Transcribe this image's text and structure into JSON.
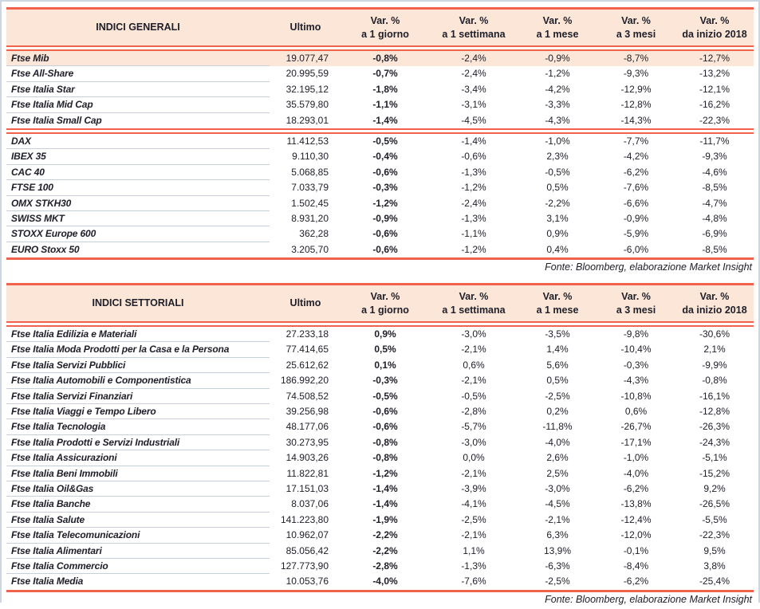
{
  "colors": {
    "accent": "#f0624c",
    "header_bg": "#fbe6d7",
    "row_highlight": "#fbe6d7",
    "separator": "#c9cfda",
    "text": "#20202b",
    "frame": "#ccd7e3"
  },
  "tables": [
    {
      "title": "INDICI GENERALI",
      "columns": [
        {
          "label": "Ultimo",
          "sub": ""
        },
        {
          "label": "Var. %",
          "sub": "a 1 giorno"
        },
        {
          "label": "Var. %",
          "sub": "a 1 settimana"
        },
        {
          "label": "Var. %",
          "sub": "a 1 mese"
        },
        {
          "label": "Var. %",
          "sub": "a 3 mesi"
        },
        {
          "label": "Var. %",
          "sub": "da inizio 2018"
        }
      ],
      "groups": [
        {
          "rows": [
            {
              "name": "Ftse Mib",
              "ultimo": "19.077,47",
              "v": [
                "-0,8%",
                "-2,4%",
                "-0,9%",
                "-8,7%",
                "-12,7%"
              ],
              "highlight": true
            },
            {
              "name": "Ftse All-Share",
              "ultimo": "20.995,59",
              "v": [
                "-0,7%",
                "-2,4%",
                "-1,2%",
                "-9,3%",
                "-13,2%"
              ]
            },
            {
              "name": "Ftse Italia Star",
              "ultimo": "32.195,12",
              "v": [
                "-1,8%",
                "-3,4%",
                "-4,2%",
                "-12,9%",
                "-12,1%"
              ]
            },
            {
              "name": "Ftse Italia Mid Cap",
              "ultimo": "35.579,80",
              "v": [
                "-1,1%",
                "-3,1%",
                "-3,3%",
                "-12,8%",
                "-16,2%"
              ]
            },
            {
              "name": "Ftse Italia Small Cap",
              "ultimo": "18.293,01",
              "v": [
                "-1,4%",
                "-4,5%",
                "-4,3%",
                "-14,3%",
                "-22,3%"
              ]
            }
          ]
        },
        {
          "rows": [
            {
              "name": "DAX",
              "ultimo": "11.412,53",
              "v": [
                "-0,5%",
                "-1,4%",
                "-1,0%",
                "-7,7%",
                "-11,7%"
              ]
            },
            {
              "name": "IBEX 35",
              "ultimo": "9.110,30",
              "v": [
                "-0,4%",
                "-0,6%",
                "2,3%",
                "-4,2%",
                "-9,3%"
              ]
            },
            {
              "name": "CAC 40",
              "ultimo": "5.068,85",
              "v": [
                "-0,6%",
                "-1,3%",
                "-0,5%",
                "-6,2%",
                "-4,6%"
              ]
            },
            {
              "name": "FTSE 100",
              "ultimo": "7.033,79",
              "v": [
                "-0,3%",
                "-1,2%",
                "0,5%",
                "-7,6%",
                "-8,5%"
              ]
            },
            {
              "name": "OMX STKH30",
              "ultimo": "1.502,45",
              "v": [
                "-1,2%",
                "-2,4%",
                "-2,2%",
                "-6,6%",
                "-4,7%"
              ]
            },
            {
              "name": "SWISS MKT",
              "ultimo": "8.931,20",
              "v": [
                "-0,9%",
                "-1,3%",
                "3,1%",
                "-0,9%",
                "-4,8%"
              ]
            },
            {
              "name": "STOXX Europe 600",
              "ultimo": "362,28",
              "v": [
                "-0,6%",
                "-1,1%",
                "0,9%",
                "-5,9%",
                "-6,9%"
              ]
            },
            {
              "name": "EURO Stoxx 50",
              "ultimo": "3.205,70",
              "v": [
                "-0,6%",
                "-1,2%",
                "0,4%",
                "-6,0%",
                "-8,5%"
              ]
            }
          ]
        }
      ],
      "source": "Fonte: Bloomberg, elaborazione Market Insight"
    },
    {
      "title": "INDICI SETTORIALI",
      "columns": [
        {
          "label": "Ultimo",
          "sub": ""
        },
        {
          "label": "Var. %",
          "sub": "a 1 giorno"
        },
        {
          "label": "Var. %",
          "sub": "a 1 settimana"
        },
        {
          "label": "Var. %",
          "sub": "a 1 mese"
        },
        {
          "label": "Var. %",
          "sub": "a 3 mesi"
        },
        {
          "label": "Var. %",
          "sub": "da inizio 2018"
        }
      ],
      "groups": [
        {
          "rows": [
            {
              "name": "Ftse Italia Edilizia e Materiali",
              "ultimo": "27.233,18",
              "v": [
                "0,9%",
                "-3,0%",
                "-3,5%",
                "-9,8%",
                "-30,6%"
              ]
            },
            {
              "name": "Ftse Italia Moda Prodotti per la Casa e la Persona",
              "ultimo": "77.414,65",
              "v": [
                "0,5%",
                "-2,1%",
                "1,4%",
                "-10,4%",
                "2,1%"
              ]
            },
            {
              "name": "Ftse Italia Servizi Pubblici",
              "ultimo": "25.612,62",
              "v": [
                "0,1%",
                "0,6%",
                "5,6%",
                "-0,3%",
                "-9,9%"
              ]
            },
            {
              "name": "Ftse Italia Automobili e Componentistica",
              "ultimo": "186.992,20",
              "v": [
                "-0,3%",
                "-2,1%",
                "0,5%",
                "-4,3%",
                "-0,8%"
              ]
            },
            {
              "name": "Ftse Italia Servizi Finanziari",
              "ultimo": "74.508,52",
              "v": [
                "-0,5%",
                "-0,5%",
                "-2,5%",
                "-10,8%",
                "-16,1%"
              ]
            },
            {
              "name": "Ftse Italia Viaggi e Tempo Libero",
              "ultimo": "39.256,98",
              "v": [
                "-0,6%",
                "-2,8%",
                "0,2%",
                "0,6%",
                "-12,8%"
              ]
            },
            {
              "name": "Ftse Italia Tecnologia",
              "ultimo": "48.177,06",
              "v": [
                "-0,6%",
                "-5,7%",
                "-11,8%",
                "-26,7%",
                "-26,3%"
              ]
            },
            {
              "name": "Ftse Italia Prodotti e Servizi Industriali",
              "ultimo": "30.273,95",
              "v": [
                "-0,8%",
                "-3,0%",
                "-4,0%",
                "-17,1%",
                "-24,3%"
              ]
            },
            {
              "name": "Ftse Italia Assicurazioni",
              "ultimo": "14.903,26",
              "v": [
                "-0,8%",
                "0,0%",
                "2,6%",
                "-1,0%",
                "-5,1%"
              ]
            },
            {
              "name": "Ftse Italia Beni Immobili",
              "ultimo": "11.822,81",
              "v": [
                "-1,2%",
                "-2,1%",
                "2,5%",
                "-4,0%",
                "-15,2%"
              ]
            },
            {
              "name": "Ftse Italia Oil&Gas",
              "ultimo": "17.151,03",
              "v": [
                "-1,4%",
                "-3,9%",
                "-3,0%",
                "-6,2%",
                "9,2%"
              ]
            },
            {
              "name": "Ftse Italia Banche",
              "ultimo": "8.037,06",
              "v": [
                "-1,4%",
                "-4,1%",
                "-4,5%",
                "-13,8%",
                "-26,5%"
              ]
            },
            {
              "name": "Ftse Italia Salute",
              "ultimo": "141.223,80",
              "v": [
                "-1,9%",
                "-2,5%",
                "-2,1%",
                "-12,4%",
                "-5,5%"
              ]
            },
            {
              "name": "Ftse Italia Telecomunicazioni",
              "ultimo": "10.962,07",
              "v": [
                "-2,2%",
                "-2,1%",
                "6,3%",
                "-12,0%",
                "-22,3%"
              ]
            },
            {
              "name": "Ftse Italia Alimentari",
              "ultimo": "85.056,42",
              "v": [
                "-2,2%",
                "1,1%",
                "13,9%",
                "-0,1%",
                "9,5%"
              ]
            },
            {
              "name": "Ftse Italia Commercio",
              "ultimo": "127.773,90",
              "v": [
                "-2,8%",
                "-1,3%",
                "-6,3%",
                "-8,4%",
                "3,8%"
              ]
            },
            {
              "name": "Ftse Italia Media",
              "ultimo": "10.053,76",
              "v": [
                "-4,0%",
                "-7,6%",
                "-2,5%",
                "-6,2%",
                "-25,4%"
              ]
            }
          ]
        }
      ],
      "source": "Fonte: Bloomberg, elaborazione Market Insight"
    }
  ]
}
